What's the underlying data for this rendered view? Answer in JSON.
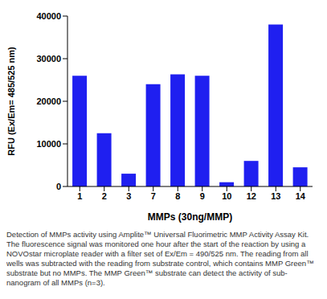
{
  "chart_data": {
    "type": "bar",
    "categories": [
      "1",
      "2",
      "3",
      "7",
      "8",
      "9",
      "10",
      "12",
      "13",
      "14"
    ],
    "values": [
      26000,
      12500,
      3000,
      24000,
      26300,
      26000,
      1000,
      6000,
      38000,
      4500
    ],
    "color": "#1f1ff0",
    "x_label": "MMPs (30ng/MMP)",
    "y_label": "RFU (Ex/Em= 485/525 nm)",
    "ylim": [
      0,
      40000
    ],
    "yticks": [
      0,
      10000,
      20000,
      30000,
      40000
    ],
    "grid": false,
    "caption": "Detection of MMPs activity using Amplite™ Universal Fluorimetric MMP Activity Assay Kit.  The fluorescence signal was monitored one hour after the start of the reaction by using a NOVOstar microplate reader with a filter set of Ex/Em = 490/525 nm. The reading from all wells was subtracted with the reading from substrate control, which contains MMP Green™ substrate but no MMPs. The MMP Green™ substrate can detect the activity of sub-nanogram of all MMPs (n=3)."
  }
}
